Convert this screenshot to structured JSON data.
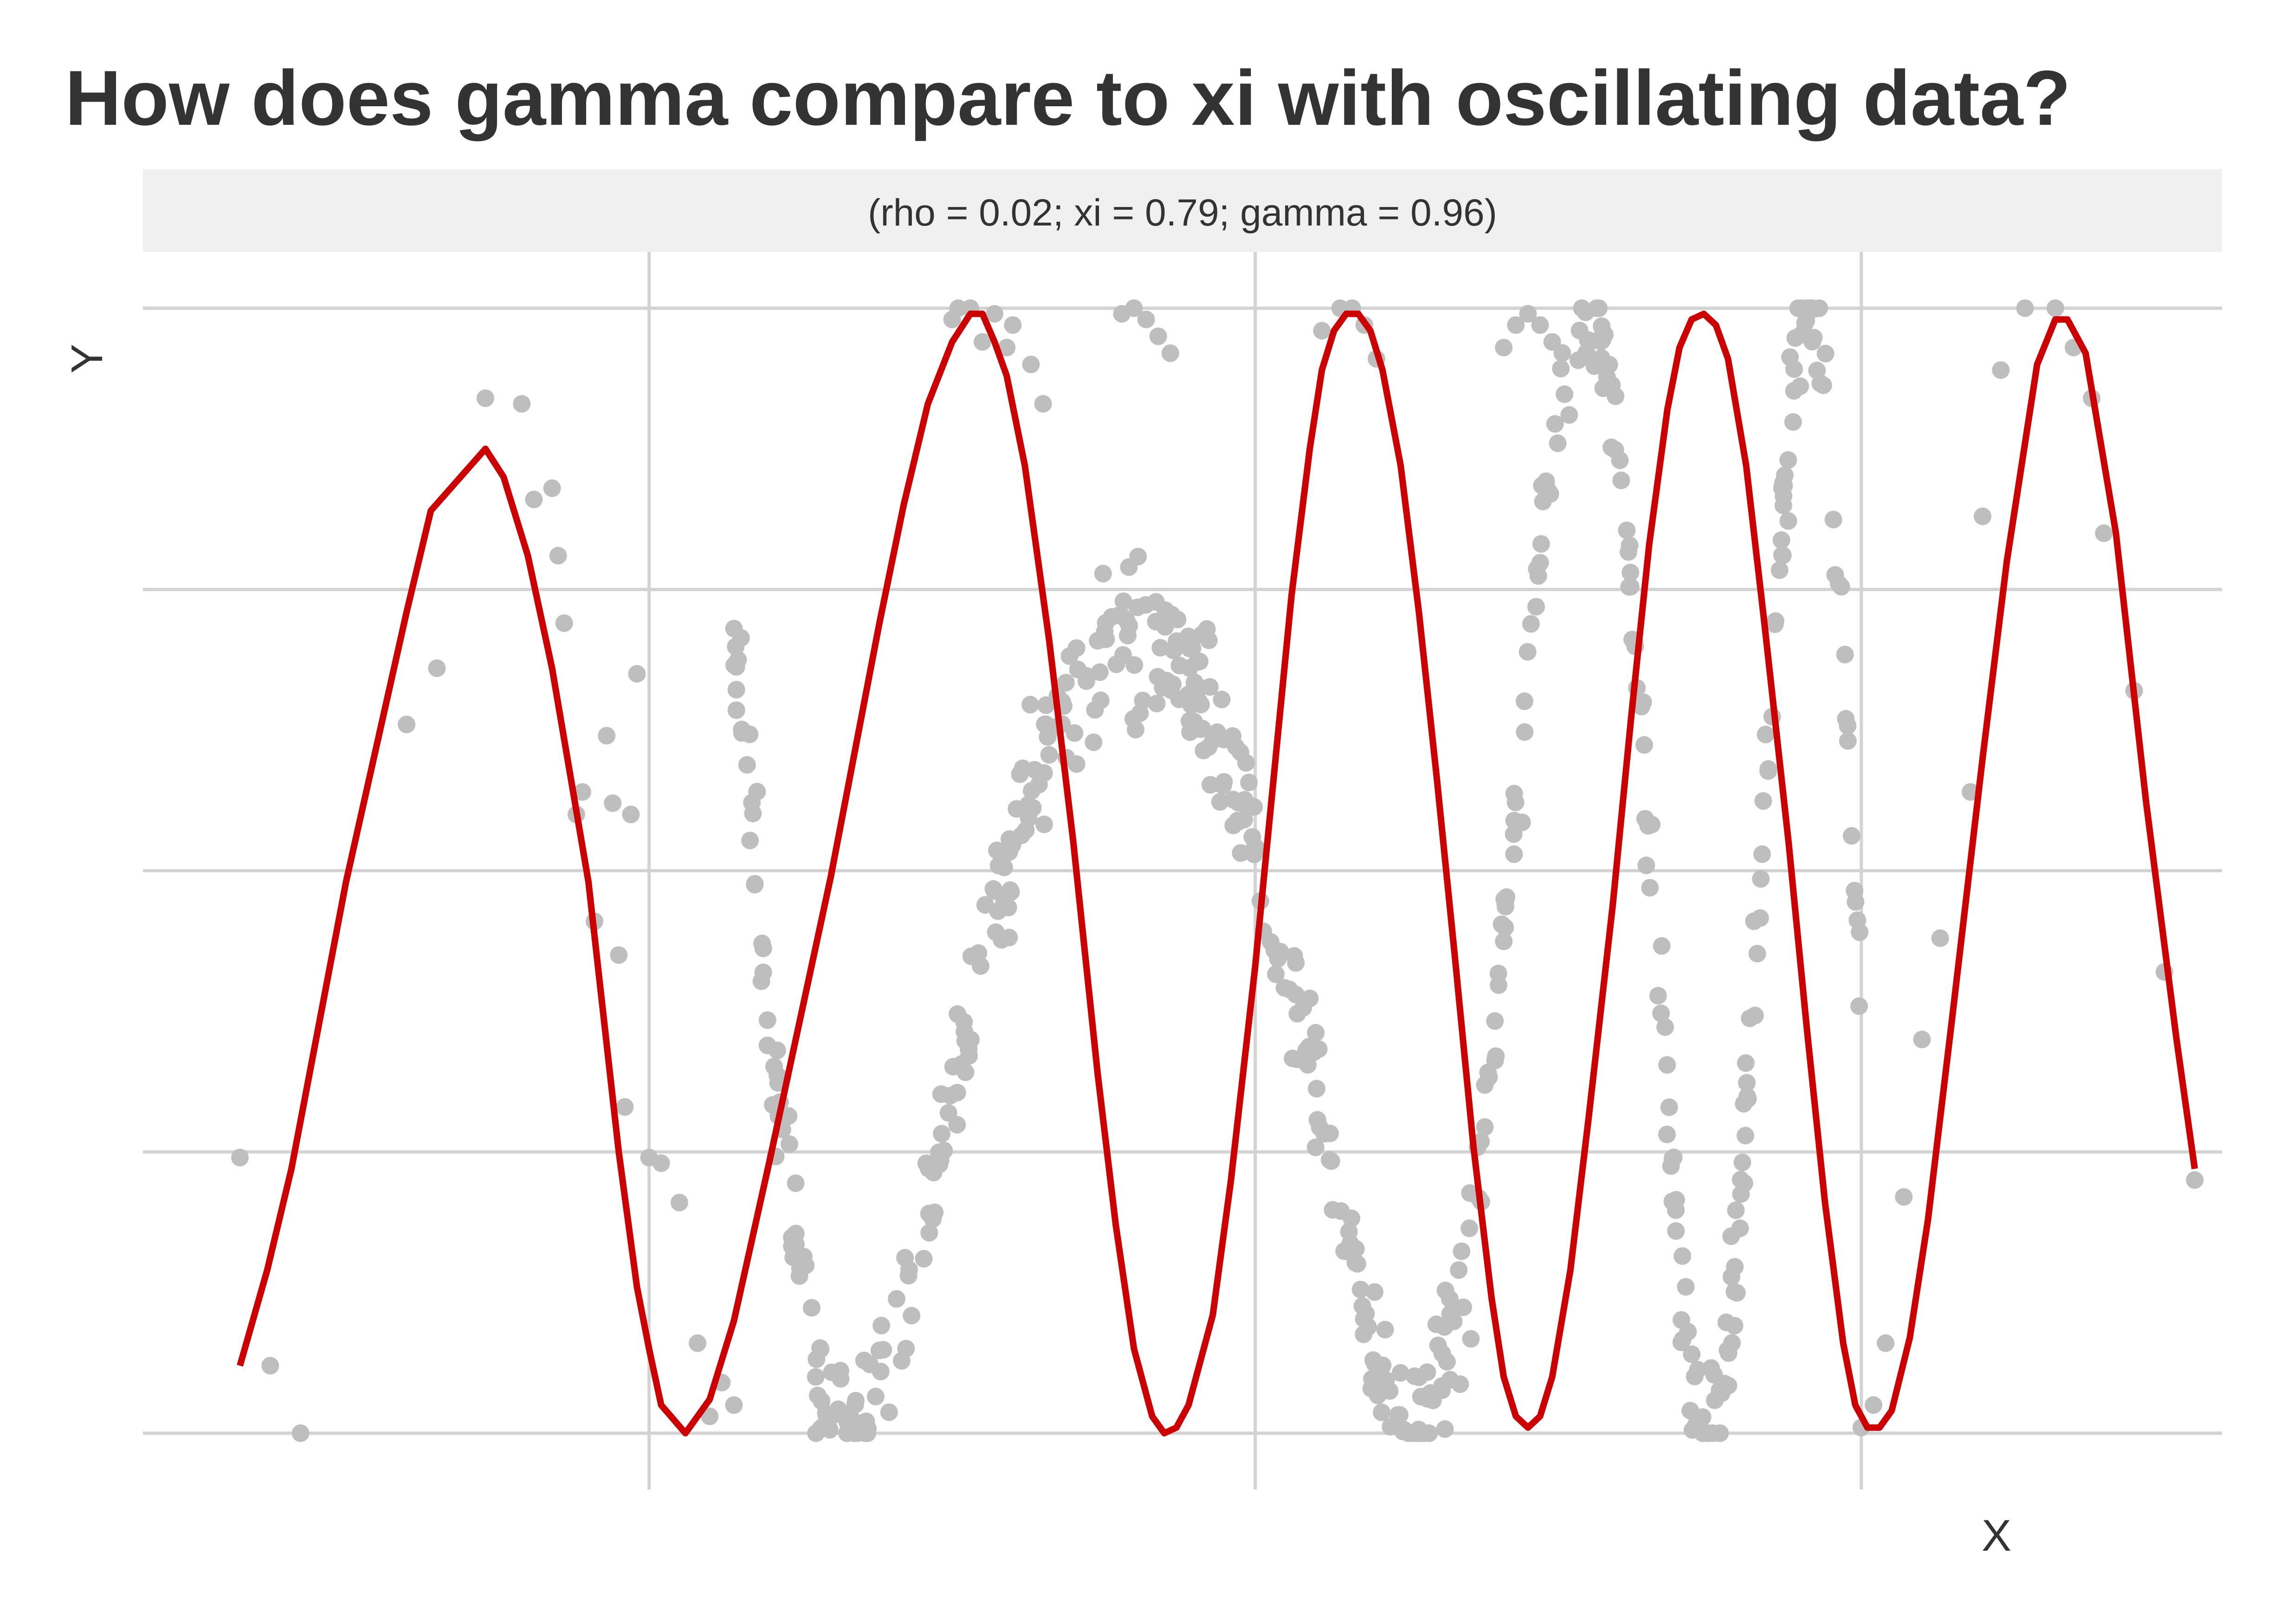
{
  "title": "How does gamma compare to xi with oscillating data?",
  "subtitle": "(rho = 0.02; xi = 0.79; gamma = 0.96)",
  "colors": {
    "points": "#bebebe",
    "curve": "#cc0000",
    "grid": "#d3d3d3",
    "strip": "#f0f0f0",
    "text": "#333333"
  },
  "chart_data": {
    "type": "scatter",
    "title": "How does gamma compare to xi with oscillating data?",
    "subtitle": "(rho = 0.02; xi = 0.79; gamma = 0.96)",
    "xlabel": "X",
    "ylabel": "Y",
    "grid": true,
    "axis_tick_labels": false,
    "xlim": [
      -1.635,
      1.795
    ],
    "ylim": [
      -1.1,
      1.1
    ],
    "x_gridlines": [
      -0.8,
      0.2,
      1.2
    ],
    "y_gridlines": [
      -1.0,
      -0.5,
      0.0,
      0.5,
      1.0
    ],
    "series": [
      {
        "kind": "points",
        "color": "#bebebe",
        "description": "noisy oscillating data, y = cos(x^2) with noise, clipped to [-1, 1]",
        "points": [
          [
            -1.475,
            -0.51
          ],
          [
            -1.425,
            -0.88
          ],
          [
            -1.375,
            -1.0
          ],
          [
            -1.2,
            0.26
          ],
          [
            -1.15,
            0.36
          ],
          [
            -1.07,
            0.84
          ],
          [
            -1.01,
            0.83
          ],
          [
            -0.99,
            0.66
          ],
          [
            -0.96,
            0.68
          ],
          [
            -0.95,
            0.56
          ],
          [
            -0.94,
            0.44
          ],
          [
            -0.92,
            0.1
          ],
          [
            -0.91,
            0.14
          ],
          [
            -0.89,
            -0.09
          ],
          [
            -0.87,
            0.24
          ],
          [
            -0.86,
            0.12
          ],
          [
            -0.85,
            -0.15
          ],
          [
            -0.84,
            -0.42
          ],
          [
            -0.83,
            0.1
          ],
          [
            -0.82,
            0.35
          ],
          [
            -0.8,
            -0.51
          ],
          [
            -0.78,
            -0.52
          ],
          [
            -0.75,
            -0.59
          ],
          [
            -0.72,
            -0.84
          ],
          [
            -0.7,
            -0.97
          ],
          [
            -0.68,
            -0.91
          ],
          [
            -0.66,
            -0.95
          ],
          [
            -0.3,
            0.98
          ],
          [
            -0.29,
            1.0
          ],
          [
            -0.27,
            1.0
          ],
          [
            -0.25,
            0.94
          ],
          [
            -0.23,
            0.99
          ],
          [
            -0.21,
            0.93
          ],
          [
            -0.2,
            0.97
          ],
          [
            -0.17,
            0.9
          ],
          [
            -0.15,
            0.83
          ],
          [
            -0.02,
            0.99
          ],
          [
            0.0,
            1.0
          ],
          [
            0.02,
            0.98
          ],
          [
            0.04,
            0.95
          ],
          [
            0.06,
            0.92
          ],
          [
            0.31,
            0.96
          ],
          [
            0.34,
            1.0
          ],
          [
            0.36,
            1.0
          ],
          [
            0.38,
            0.97
          ],
          [
            0.4,
            0.91
          ],
          [
            0.61,
            0.93
          ],
          [
            0.63,
            0.97
          ],
          [
            0.65,
            0.99
          ],
          [
            0.67,
            0.97
          ],
          [
            0.69,
            0.94
          ],
          [
            1.2,
            -0.99
          ],
          [
            1.22,
            -0.95
          ],
          [
            1.24,
            -0.84
          ],
          [
            1.27,
            -0.58
          ],
          [
            1.3,
            -0.3
          ],
          [
            1.33,
            -0.12
          ],
          [
            1.38,
            0.14
          ],
          [
            1.4,
            0.63
          ],
          [
            1.43,
            0.89
          ],
          [
            1.47,
            1.0
          ],
          [
            1.52,
            1.0
          ],
          [
            1.55,
            0.93
          ],
          [
            1.58,
            0.84
          ],
          [
            1.6,
            0.6
          ],
          [
            1.65,
            0.32
          ],
          [
            1.7,
            -0.18
          ],
          [
            1.75,
            -0.55
          ]
        ],
        "generated_points": {
          "count": 600,
          "function": "cos(x^2)",
          "noise_sd": 0.06,
          "x_from": -0.66,
          "x_to": 1.2,
          "seed": 7
        }
      },
      {
        "kind": "line",
        "color": "#cc0000",
        "description": "smooth fitted curve approximately y = cos(x^2)",
        "points": [
          [
            -1.475,
            -0.88
          ],
          [
            -1.43,
            -0.71
          ],
          [
            -1.39,
            -0.53
          ],
          [
            -1.3,
            -0.02
          ],
          [
            -1.2,
            0.46
          ],
          [
            -1.16,
            0.64
          ],
          [
            -1.07,
            0.75
          ],
          [
            -1.04,
            0.7
          ],
          [
            -1.0,
            0.56
          ],
          [
            -0.96,
            0.36
          ],
          [
            -0.9,
            -0.02
          ],
          [
            -0.85,
            -0.5
          ],
          [
            -0.82,
            -0.74
          ],
          [
            -0.8,
            -0.85
          ],
          [
            -0.78,
            -0.95
          ],
          [
            -0.74,
            -1.0
          ],
          [
            -0.7,
            -0.94
          ],
          [
            -0.66,
            -0.8
          ],
          [
            -0.6,
            -0.51
          ],
          [
            -0.5,
            -0.01
          ],
          [
            -0.42,
            0.44
          ],
          [
            -0.38,
            0.65
          ],
          [
            -0.34,
            0.83
          ],
          [
            -0.3,
            0.94
          ],
          [
            -0.27,
            0.99
          ],
          [
            -0.25,
            0.99
          ],
          [
            -0.23,
            0.94
          ],
          [
            -0.21,
            0.88
          ],
          [
            -0.18,
            0.72
          ],
          [
            -0.14,
            0.41
          ],
          [
            -0.1,
            0.05
          ],
          [
            -0.06,
            -0.36
          ],
          [
            -0.03,
            -0.63
          ],
          [
            0.0,
            -0.85
          ],
          [
            0.03,
            -0.97
          ],
          [
            0.05,
            -1.0
          ],
          [
            0.07,
            -0.99
          ],
          [
            0.09,
            -0.95
          ],
          [
            0.13,
            -0.79
          ],
          [
            0.16,
            -0.55
          ],
          [
            0.2,
            -0.17
          ],
          [
            0.23,
            0.16
          ],
          [
            0.26,
            0.49
          ],
          [
            0.29,
            0.75
          ],
          [
            0.31,
            0.89
          ],
          [
            0.33,
            0.96
          ],
          [
            0.35,
            0.99
          ],
          [
            0.37,
            0.99
          ],
          [
            0.39,
            0.96
          ],
          [
            0.41,
            0.89
          ],
          [
            0.44,
            0.72
          ],
          [
            0.47,
            0.46
          ],
          [
            0.5,
            0.16
          ],
          [
            0.53,
            -0.16
          ],
          [
            0.56,
            -0.49
          ],
          [
            0.59,
            -0.76
          ],
          [
            0.61,
            -0.9
          ],
          [
            0.63,
            -0.97
          ],
          [
            0.65,
            -0.99
          ],
          [
            0.67,
            -0.97
          ],
          [
            0.69,
            -0.9
          ],
          [
            0.72,
            -0.71
          ],
          [
            0.75,
            -0.44
          ],
          [
            0.79,
            -0.06
          ],
          [
            0.82,
            0.27
          ],
          [
            0.85,
            0.58
          ],
          [
            0.88,
            0.82
          ],
          [
            0.9,
            0.93
          ],
          [
            0.92,
            0.98
          ],
          [
            0.94,
            0.99
          ],
          [
            0.96,
            0.97
          ],
          [
            0.98,
            0.91
          ],
          [
            1.01,
            0.72
          ],
          [
            1.04,
            0.44
          ],
          [
            1.08,
            0.05
          ],
          [
            1.11,
            -0.28
          ],
          [
            1.14,
            -0.59
          ],
          [
            1.17,
            -0.84
          ],
          [
            1.19,
            -0.95
          ],
          [
            1.21,
            -0.99
          ],
          [
            1.23,
            -0.99
          ],
          [
            1.25,
            -0.96
          ],
          [
            1.28,
            -0.83
          ],
          [
            1.31,
            -0.62
          ],
          [
            1.35,
            -0.26
          ],
          [
            1.4,
            0.2
          ],
          [
            1.44,
            0.55
          ],
          [
            1.49,
            0.9
          ],
          [
            1.52,
            0.98
          ],
          [
            1.54,
            0.98
          ],
          [
            1.57,
            0.92
          ],
          [
            1.62,
            0.6
          ],
          [
            1.67,
            0.12
          ],
          [
            1.72,
            -0.3
          ],
          [
            1.75,
            -0.53
          ]
        ]
      }
    ]
  }
}
